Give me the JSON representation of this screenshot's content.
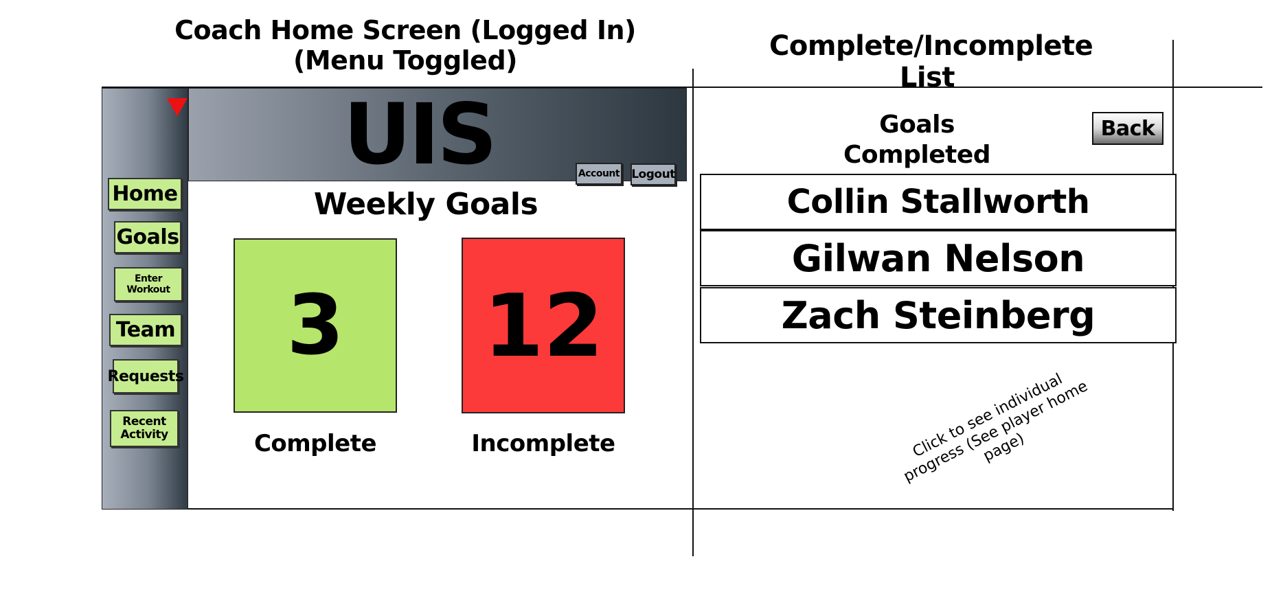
{
  "titles": {
    "left": "Coach Home Screen (Logged In) (Menu Toggled)",
    "right": "Complete/Incomplete List"
  },
  "sidebar": {
    "items": [
      {
        "label": "Home"
      },
      {
        "label": "Goals"
      },
      {
        "label": "Enter Workout"
      },
      {
        "label": "Team"
      },
      {
        "label": "Requests"
      },
      {
        "label": "Recent Activity"
      }
    ]
  },
  "header": {
    "logo": "UIS",
    "account_label": "Account",
    "logout_label": "Logout"
  },
  "main": {
    "title": "Weekly Goals",
    "complete": {
      "count": "3",
      "label": "Complete"
    },
    "incomplete": {
      "count": "12",
      "label": "Incomplete"
    }
  },
  "list_panel": {
    "title": "Goals Completed",
    "back_label": "Back",
    "names": [
      "Collin Stallworth",
      "Gilwan Nelson",
      "Zach Steinberg"
    ],
    "annotation": "Click to see individual progress (See player home page)"
  },
  "colors": {
    "complete_tile": "#b6e56c",
    "incomplete_tile": "#fd3a3a",
    "nav_button": "#c6ec90",
    "toggle_arrow": "#ee1111"
  },
  "icons": {
    "toggle": "triangle-down-icon"
  }
}
